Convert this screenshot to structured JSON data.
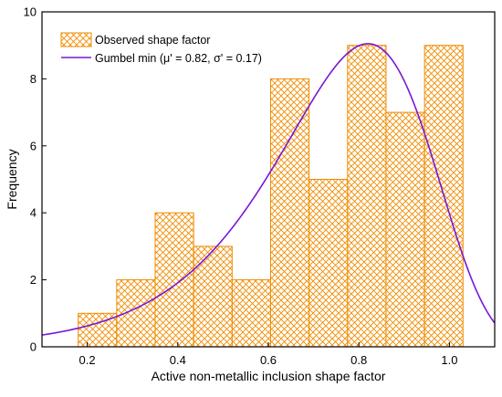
{
  "chart_data": {
    "type": "bar",
    "xlabel": "Active non-metallic inclusion shape factor",
    "ylabel": "Frequency",
    "xlim": [
      0.1,
      1.1
    ],
    "ylim": [
      0,
      10
    ],
    "xticks": [
      0.2,
      0.4,
      0.6,
      0.8,
      1.0
    ],
    "xtick_labels": [
      "0.2",
      "0.4",
      "0.6",
      "0.8",
      "1.0"
    ],
    "yticks": [
      0,
      2,
      4,
      6,
      8,
      10
    ],
    "ytick_labels": [
      "0",
      "2",
      "4",
      "6",
      "8",
      "10"
    ],
    "grid": false,
    "legend_position": "top-left",
    "bin_edges": [
      0.18,
      0.265,
      0.35,
      0.435,
      0.52,
      0.605,
      0.69,
      0.775,
      0.86,
      0.945,
      1.03
    ],
    "series": [
      {
        "name": "Observed shape factor",
        "kind": "histogram",
        "values": [
          1,
          2,
          4,
          3,
          2,
          8,
          5,
          9,
          7,
          9
        ],
        "color": "#f08c00",
        "pattern": "crosshatch"
      },
      {
        "name": "Gumbel min (μ' = 0.82, σ' = 0.17)",
        "kind": "curve",
        "color": "#7b16d6",
        "mu": 0.82,
        "sigma": 0.17,
        "peak": 9.05
      }
    ]
  }
}
